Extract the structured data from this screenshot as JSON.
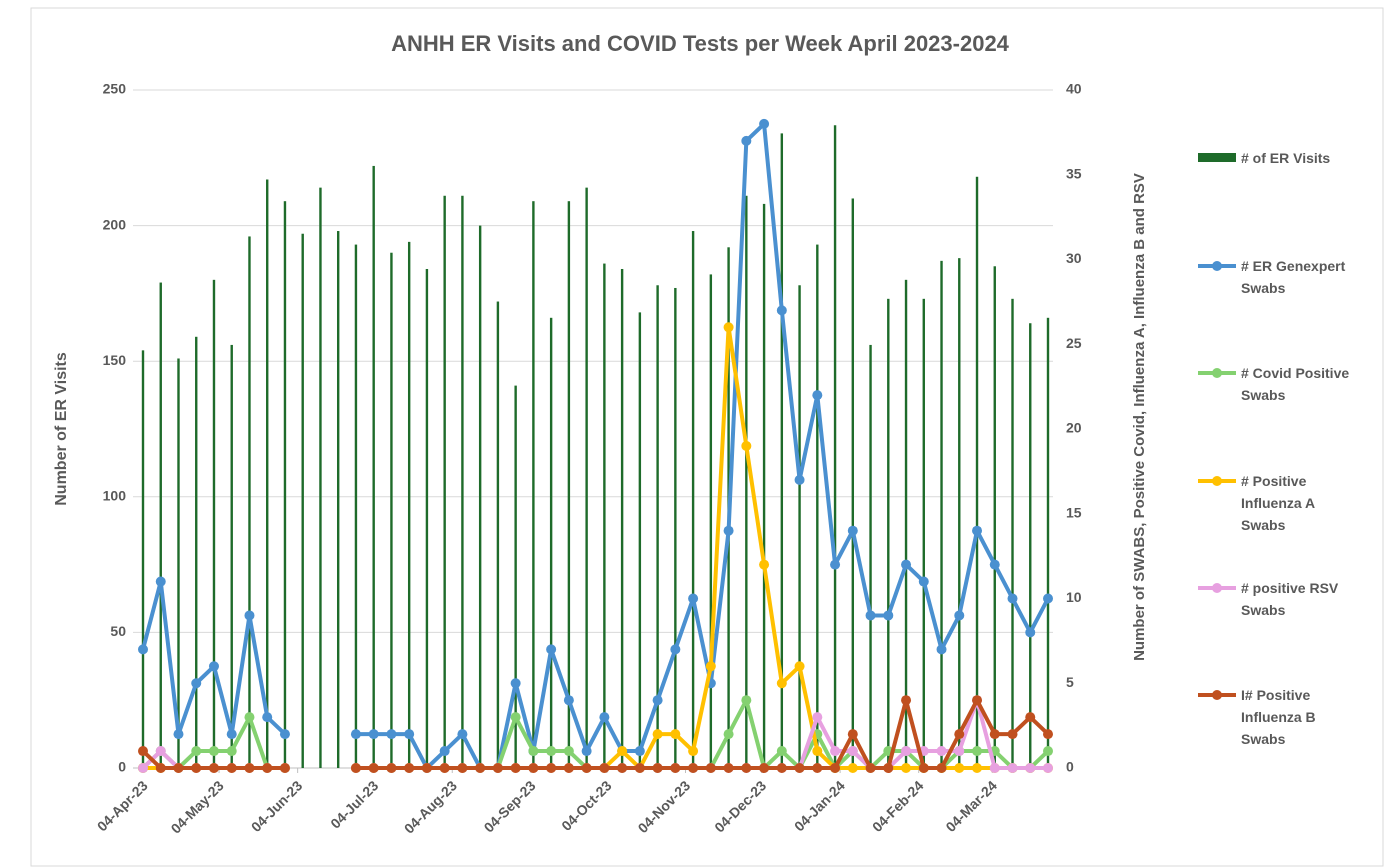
{
  "chart_data": {
    "type": "bar",
    "title": "ANHH ER Visits and COVID Tests per Week April 2023-2024",
    "y_label": "Number of ER Visits",
    "y2_label": "Number of SWABS, Positive Covid, Influenza A, Influenza B and RSV",
    "x": [
      "2023-04-04",
      "2023-04-11",
      "2023-04-18",
      "2023-04-25",
      "2023-05-02",
      "2023-05-09",
      "2023-05-16",
      "2023-05-23",
      "2023-05-30",
      "2023-06-06",
      "2023-06-13",
      "2023-06-20",
      "2023-06-27",
      "2023-07-04",
      "2023-07-11",
      "2023-07-18",
      "2023-07-25",
      "2023-08-01",
      "2023-08-08",
      "2023-08-15",
      "2023-08-22",
      "2023-08-29",
      "2023-09-05",
      "2023-09-12",
      "2023-09-19",
      "2023-09-26",
      "2023-10-03",
      "2023-10-10",
      "2023-10-17",
      "2023-10-24",
      "2023-10-31",
      "2023-11-07",
      "2023-11-14",
      "2023-11-21",
      "2023-11-28",
      "2023-12-05",
      "2023-12-12",
      "2023-12-19",
      "2023-12-26",
      "2024-01-02",
      "2024-01-09",
      "2024-01-16",
      "2024-01-23",
      "2024-01-30",
      "2024-02-06",
      "2024-02-13",
      "2024-02-20",
      "2024-02-27",
      "2024-03-05",
      "2024-03-12",
      "2024-03-19",
      "2024-03-26"
    ],
    "xlim": [
      "2023-04-04",
      "2024-03-26"
    ],
    "xticks": [
      {
        "value": "2023-04-04",
        "label": "04-Apr-23"
      },
      {
        "value": "2023-05-04",
        "label": "04-May-23"
      },
      {
        "value": "2023-06-04",
        "label": "04-Jun-23"
      },
      {
        "value": "2023-07-04",
        "label": "04-Jul-23"
      },
      {
        "value": "2023-08-04",
        "label": "04-Aug-23"
      },
      {
        "value": "2023-09-04",
        "label": "04-Sep-23"
      },
      {
        "value": "2023-10-04",
        "label": "04-Oct-23"
      },
      {
        "value": "2023-11-04",
        "label": "04-Nov-23"
      },
      {
        "value": "2023-12-04",
        "label": "04-Dec-23"
      },
      {
        "value": "2024-01-04",
        "label": "04-Jan-24"
      },
      {
        "value": "2024-02-04",
        "label": "04-Feb-24"
      },
      {
        "value": "2024-03-04",
        "label": "04-Mar-24"
      }
    ],
    "ylim": [
      0,
      250
    ],
    "yticks": [
      0,
      50,
      100,
      150,
      200,
      250
    ],
    "y2lim": [
      0,
      40
    ],
    "y2ticks": [
      0,
      5,
      10,
      15,
      20,
      25,
      30,
      35,
      40
    ],
    "grid": true,
    "legend": "right",
    "series": [
      {
        "name": "# of ER Visits",
        "type": "bar",
        "color": "#1e6b2a",
        "axis": "y",
        "values": [
          154,
          179,
          151,
          159,
          180,
          156,
          196,
          217,
          209,
          197,
          214,
          198,
          193,
          222,
          190,
          194,
          184,
          211,
          211,
          200,
          172,
          141,
          209,
          166,
          209,
          214,
          186,
          184,
          168,
          178,
          177,
          198,
          182,
          192,
          211,
          208,
          234,
          178,
          193,
          237,
          210,
          156,
          173,
          180,
          173,
          187,
          188,
          218,
          185,
          173,
          164,
          166
        ]
      },
      {
        "name": "# ER Genexpert Swabs",
        "type": "line",
        "color": "#4a90d0",
        "axis": "y2",
        "values": [
          7,
          11,
          2,
          5,
          6,
          2,
          9,
          3,
          2,
          null,
          null,
          null,
          2,
          2,
          2,
          2,
          0,
          1,
          2,
          0,
          0,
          5,
          1,
          7,
          4,
          1,
          3,
          1,
          1,
          4,
          7,
          10,
          5,
          14,
          37,
          38,
          27,
          17,
          22,
          12,
          14,
          9,
          9,
          12,
          11,
          7,
          9,
          14,
          12,
          10,
          8,
          10
        ]
      },
      {
        "name": "# Covid Positive Swabs",
        "type": "line",
        "color": "#84d170",
        "axis": "y2",
        "values": [
          0,
          1,
          0,
          1,
          1,
          1,
          3,
          0,
          0,
          null,
          null,
          null,
          0,
          0,
          0,
          0,
          0,
          0,
          0,
          0,
          0,
          3,
          1,
          1,
          1,
          0,
          0,
          0,
          0,
          0,
          0,
          0,
          0,
          2,
          4,
          0,
          1,
          0,
          2,
          0,
          1,
          0,
          1,
          1,
          0,
          0,
          1,
          1,
          1,
          0,
          0,
          1
        ]
      },
      {
        "name": "# Positive Influenza A Swabs",
        "type": "line",
        "color": "#ffc000",
        "axis": "y2",
        "values": [
          0,
          0,
          0,
          0,
          0,
          0,
          0,
          0,
          0,
          null,
          null,
          null,
          0,
          0,
          0,
          0,
          0,
          0,
          0,
          0,
          0,
          0,
          0,
          0,
          0,
          0,
          0,
          1,
          0,
          2,
          2,
          1,
          6,
          26,
          19,
          12,
          5,
          6,
          1,
          0,
          0,
          0,
          0,
          0,
          0,
          0,
          0,
          0,
          0,
          0,
          0,
          0
        ]
      },
      {
        "name": "# positive RSV Swabs",
        "type": "line",
        "color": "#e7a0e0",
        "axis": "y2",
        "values": [
          0,
          1,
          0,
          0,
          0,
          0,
          0,
          0,
          0,
          null,
          null,
          null,
          0,
          0,
          0,
          0,
          0,
          0,
          0,
          0,
          0,
          0,
          0,
          0,
          0,
          0,
          0,
          0,
          0,
          0,
          0,
          0,
          0,
          0,
          0,
          0,
          0,
          0,
          3,
          1,
          1,
          0,
          0,
          1,
          1,
          1,
          1,
          4,
          0,
          0,
          0,
          0
        ]
      },
      {
        "name": "I# Positive Influenza B Swabs",
        "type": "line",
        "color": "#c0501f",
        "axis": "y2",
        "values": [
          1,
          0,
          0,
          0,
          0,
          0,
          0,
          0,
          0,
          null,
          null,
          null,
          0,
          0,
          0,
          0,
          0,
          0,
          0,
          0,
          0,
          0,
          0,
          0,
          0,
          0,
          0,
          0,
          0,
          0,
          0,
          0,
          0,
          0,
          0,
          0,
          0,
          0,
          0,
          0,
          2,
          0,
          0,
          4,
          0,
          0,
          2,
          4,
          2,
          2,
          3,
          2
        ]
      }
    ]
  }
}
